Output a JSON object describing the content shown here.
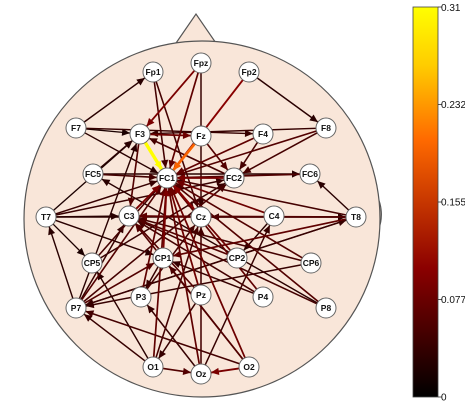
{
  "electrodes": [
    {
      "id": "Fp1",
      "label": "Fp1"
    },
    {
      "id": "Fpz",
      "label": "Fpz"
    },
    {
      "id": "Fp2",
      "label": "Fp2"
    },
    {
      "id": "F7",
      "label": "F7"
    },
    {
      "id": "F3",
      "label": "F3"
    },
    {
      "id": "Fz",
      "label": "Fz"
    },
    {
      "id": "F4",
      "label": "F4"
    },
    {
      "id": "F8",
      "label": "F8"
    },
    {
      "id": "FC5",
      "label": "FC5"
    },
    {
      "id": "FC1",
      "label": "FC1"
    },
    {
      "id": "FC2",
      "label": "FC2"
    },
    {
      "id": "FC6",
      "label": "FC6"
    },
    {
      "id": "T7",
      "label": "T7"
    },
    {
      "id": "C3",
      "label": "C3"
    },
    {
      "id": "Cz",
      "label": "Cz"
    },
    {
      "id": "C4",
      "label": "C4"
    },
    {
      "id": "T8",
      "label": "T8"
    },
    {
      "id": "CP5",
      "label": "CP5"
    },
    {
      "id": "CP1",
      "label": "CP1"
    },
    {
      "id": "CP2",
      "label": "CP2"
    },
    {
      "id": "CP6",
      "label": "CP6"
    },
    {
      "id": "P7",
      "label": "P7"
    },
    {
      "id": "P3",
      "label": "P3"
    },
    {
      "id": "Pz",
      "label": "Pz"
    },
    {
      "id": "P4",
      "label": "P4"
    },
    {
      "id": "P8",
      "label": "P8"
    },
    {
      "id": "O1",
      "label": "O1"
    },
    {
      "id": "Oz",
      "label": "Oz"
    },
    {
      "id": "O2",
      "label": "O2"
    }
  ],
  "connections": [
    {
      "from": "F3",
      "to": "FC1",
      "value": 0.31
    },
    {
      "from": "Fz",
      "to": "FC1",
      "value": 0.2
    },
    {
      "from": "F3",
      "to": "Fz",
      "value": 0.08
    },
    {
      "from": "Fp2",
      "to": "FC1",
      "value": 0.1
    },
    {
      "from": "Fp1",
      "to": "FC1",
      "value": 0.05
    },
    {
      "from": "Fpz",
      "to": "F3",
      "value": 0.09
    },
    {
      "from": "Fpz",
      "to": "FC1",
      "value": 0.07
    },
    {
      "from": "F7",
      "to": "F4",
      "value": 0.04
    },
    {
      "from": "F7",
      "to": "FC1",
      "value": 0.03
    },
    {
      "from": "F7",
      "to": "F3",
      "value": 0.02
    },
    {
      "from": "F7",
      "to": "Fp1",
      "value": 0.03
    },
    {
      "from": "F8",
      "to": "F3",
      "value": 0.04
    },
    {
      "from": "F8",
      "to": "FC2",
      "value": 0.05
    },
    {
      "from": "F8",
      "to": "FC1",
      "value": 0.06
    },
    {
      "from": "F4",
      "to": "FC1",
      "value": 0.07
    },
    {
      "from": "FC5",
      "to": "FC6",
      "value": 0.03
    },
    {
      "from": "FC5",
      "to": "FC1",
      "value": 0.05
    },
    {
      "from": "FC5",
      "to": "F3",
      "value": 0.03
    },
    {
      "from": "FC6",
      "to": "FC1",
      "value": 0.06
    },
    {
      "from": "FC2",
      "to": "FC1",
      "value": 0.09
    },
    {
      "from": "FC2",
      "to": "F3",
      "value": 0.05
    },
    {
      "from": "T7",
      "to": "FC1",
      "value": 0.04
    },
    {
      "from": "T7",
      "to": "C3",
      "value": 0.03
    },
    {
      "from": "T7",
      "to": "F3",
      "value": 0.02
    },
    {
      "from": "T7",
      "to": "T8",
      "value": 0.03
    },
    {
      "from": "T7",
      "to": "FC2",
      "value": 0.04
    },
    {
      "from": "T7",
      "to": "CP1",
      "value": 0.03
    },
    {
      "from": "T7",
      "to": "CP5",
      "value": 0.02
    },
    {
      "from": "T8",
      "to": "FC1",
      "value": 0.05
    },
    {
      "from": "T8",
      "to": "C3",
      "value": 0.06
    },
    {
      "from": "T8",
      "to": "CP1",
      "value": 0.07
    },
    {
      "from": "T8",
      "to": "Cz",
      "value": 0.05
    },
    {
      "from": "T8",
      "to": "FC6",
      "value": 0.03
    },
    {
      "from": "T8",
      "to": "P7",
      "value": 0.04
    },
    {
      "from": "C4",
      "to": "FC1",
      "value": 0.08
    },
    {
      "from": "C3",
      "to": "FC1",
      "value": 0.09
    },
    {
      "from": "Cz",
      "to": "FC1",
      "value": 0.1
    },
    {
      "from": "Cz",
      "to": "C3",
      "value": 0.07
    },
    {
      "from": "CP1",
      "to": "FC1",
      "value": 0.09
    },
    {
      "from": "CP2",
      "to": "FC1",
      "value": 0.08
    },
    {
      "from": "CP2",
      "to": "C3",
      "value": 0.06
    },
    {
      "from": "CP5",
      "to": "FC1",
      "value": 0.05
    },
    {
      "from": "CP5",
      "to": "FC2",
      "value": 0.04
    },
    {
      "from": "CP6",
      "to": "FC1",
      "value": 0.06
    },
    {
      "from": "CP6",
      "to": "C3",
      "value": 0.05
    },
    {
      "from": "CP6",
      "to": "P7",
      "value": 0.04
    },
    {
      "from": "P7",
      "to": "FC1",
      "value": 0.06
    },
    {
      "from": "P7",
      "to": "F3",
      "value": 0.03
    },
    {
      "from": "P7",
      "to": "C3",
      "value": 0.04
    },
    {
      "from": "P7",
      "to": "T7",
      "value": 0.03
    },
    {
      "from": "P7",
      "to": "FC2",
      "value": 0.05
    },
    {
      "from": "P7",
      "to": "T8",
      "value": 0.04
    },
    {
      "from": "P7",
      "to": "CP1",
      "value": 0.06
    },
    {
      "from": "P3",
      "to": "FC1",
      "value": 0.07
    },
    {
      "from": "P3",
      "to": "Cz",
      "value": 0.05
    },
    {
      "from": "Pz",
      "to": "FC1",
      "value": 0.08
    },
    {
      "from": "Pz",
      "to": "C3",
      "value": 0.06
    },
    {
      "from": "Pz",
      "to": "O1",
      "value": 0.04
    },
    {
      "from": "P4",
      "to": "FC1",
      "value": 0.07
    },
    {
      "from": "P4",
      "to": "C3",
      "value": 0.05
    },
    {
      "from": "P8",
      "to": "FC1",
      "value": 0.06
    },
    {
      "from": "P8",
      "to": "C3",
      "value": 0.05
    },
    {
      "from": "P8",
      "to": "FC5",
      "value": 0.03
    },
    {
      "from": "O1",
      "to": "FC1",
      "value": 0.07
    },
    {
      "from": "O1",
      "to": "Cz",
      "value": 0.05
    },
    {
      "from": "O1",
      "to": "P7",
      "value": 0.04
    },
    {
      "from": "O1",
      "to": "CP5",
      "value": 0.03
    },
    {
      "from": "O1",
      "to": "Oz",
      "value": 0.06
    },
    {
      "from": "O2",
      "to": "FC1",
      "value": 0.08
    },
    {
      "from": "O2",
      "to": "C3",
      "value": 0.06
    },
    {
      "from": "O2",
      "to": "P7",
      "value": 0.05
    },
    {
      "from": "O2",
      "to": "Oz",
      "value": 0.09
    },
    {
      "from": "O2",
      "to": "CP1",
      "value": 0.05
    },
    {
      "from": "Oz",
      "to": "FC1",
      "value": 0.07
    },
    {
      "from": "Oz",
      "to": "Cz",
      "value": 0.05
    },
    {
      "from": "Oz",
      "to": "P3",
      "value": 0.04
    },
    {
      "from": "Oz",
      "to": "C4",
      "value": 0.04
    },
    {
      "from": "Fp2",
      "to": "F8",
      "value": 0.03
    },
    {
      "from": "Fp1",
      "to": "Cz",
      "value": 0.05
    },
    {
      "from": "Fpz",
      "to": "Cz",
      "value": 0.04
    },
    {
      "from": "Fz",
      "to": "FC2",
      "value": 0.06
    },
    {
      "from": "F4",
      "to": "FC2",
      "value": 0.05
    },
    {
      "from": "F3",
      "to": "C3",
      "value": 0.06
    },
    {
      "from": "FC1",
      "to": "Cz",
      "value": 0.05
    },
    {
      "from": "CP1",
      "to": "P3",
      "value": 0.04
    },
    {
      "from": "C4",
      "to": "CP2",
      "value": 0.03
    },
    {
      "from": "P4",
      "to": "CP1",
      "value": 0.04
    }
  ],
  "colorbar": {
    "min": 0,
    "max": 0.31,
    "ticks": [
      {
        "value": 0.31,
        "label": "0.31"
      },
      {
        "value": 0.2325,
        "label": "0.232"
      },
      {
        "value": 0.155,
        "label": "0.155"
      },
      {
        "value": 0.0775,
        "label": "0.077"
      },
      {
        "value": 0,
        "label": "0"
      }
    ],
    "colormap": "hot"
  },
  "colors": {
    "scalp": "#f9e6d9",
    "outline": "#555555",
    "electrode_fill": "#ffffff"
  }
}
